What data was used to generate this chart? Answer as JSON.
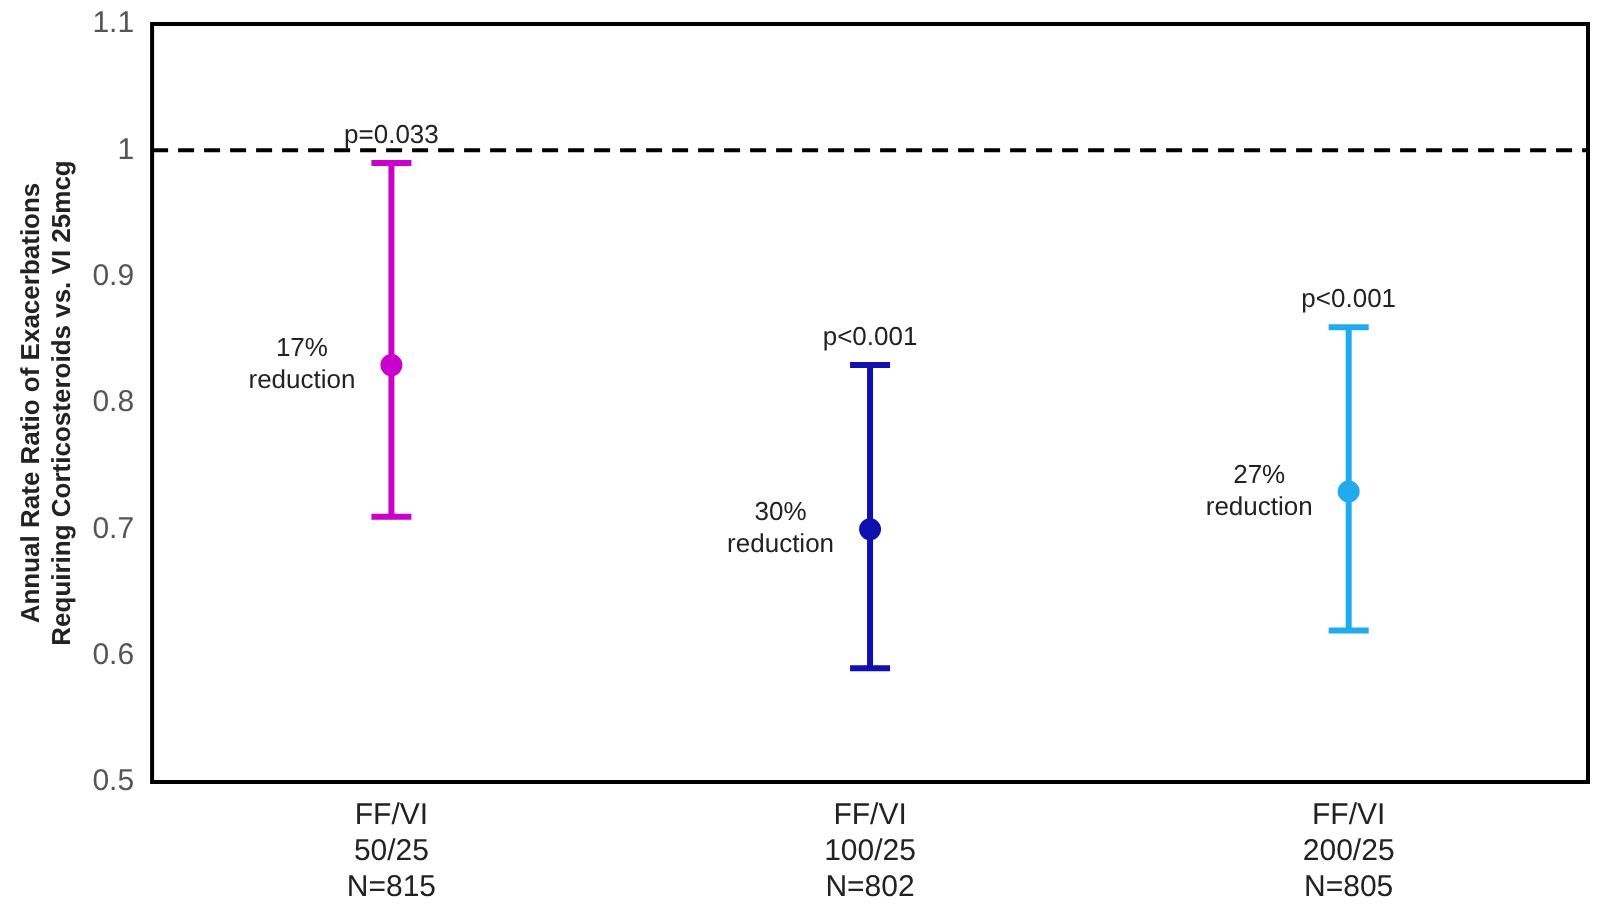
{
  "chart_data": {
    "type": "scatter",
    "ylabel": "Annual Rate Ratio of Exacerbations\nRequiring Corticosteroids vs. VI 25mcg",
    "categories": [
      "FF/VI\n50/25\nN=815",
      "FF/VI\n100/25\nN=802",
      "FF/VI\n200/25\nN=805"
    ],
    "values": [
      0.83,
      0.7,
      0.73
    ],
    "errors": [
      [
        0.71,
        0.99
      ],
      [
        0.59,
        0.83
      ],
      [
        0.62,
        0.86
      ]
    ],
    "colors": [
      "#cc00cc",
      "#1010b0",
      "#22aaee"
    ],
    "marker": "circle",
    "ylim": [
      0.5,
      1.1
    ],
    "yticks": [
      0.5,
      0.6,
      0.7,
      0.8,
      0.9,
      1,
      1.1
    ],
    "grid": false,
    "ref_lines": [
      {
        "axis": "y",
        "value": 1,
        "color": "#000000",
        "line_style": "dashed"
      }
    ],
    "annotations": [
      {
        "text": "p=0.033",
        "x": "FF/VI\n50/25\nN=815",
        "y": 0.99
      },
      {
        "text": "p<0.001",
        "x": "FF/VI\n100/25\nN=802",
        "y": 0.83
      },
      {
        "text": "p<0.001",
        "x": "FF/VI\n200/25\nN=805",
        "y": 0.86
      },
      {
        "text": "17%\nreduction",
        "x": "FF/VI\n50/25\nN=815",
        "y": 0.83
      },
      {
        "text": "30%\nreduction",
        "x": "FF/VI\n100/25\nN=802",
        "y": 0.7
      },
      {
        "text": "27%\nreduction",
        "x": "FF/VI\n200/25\nN=805",
        "y": 0.73
      }
    ]
  }
}
